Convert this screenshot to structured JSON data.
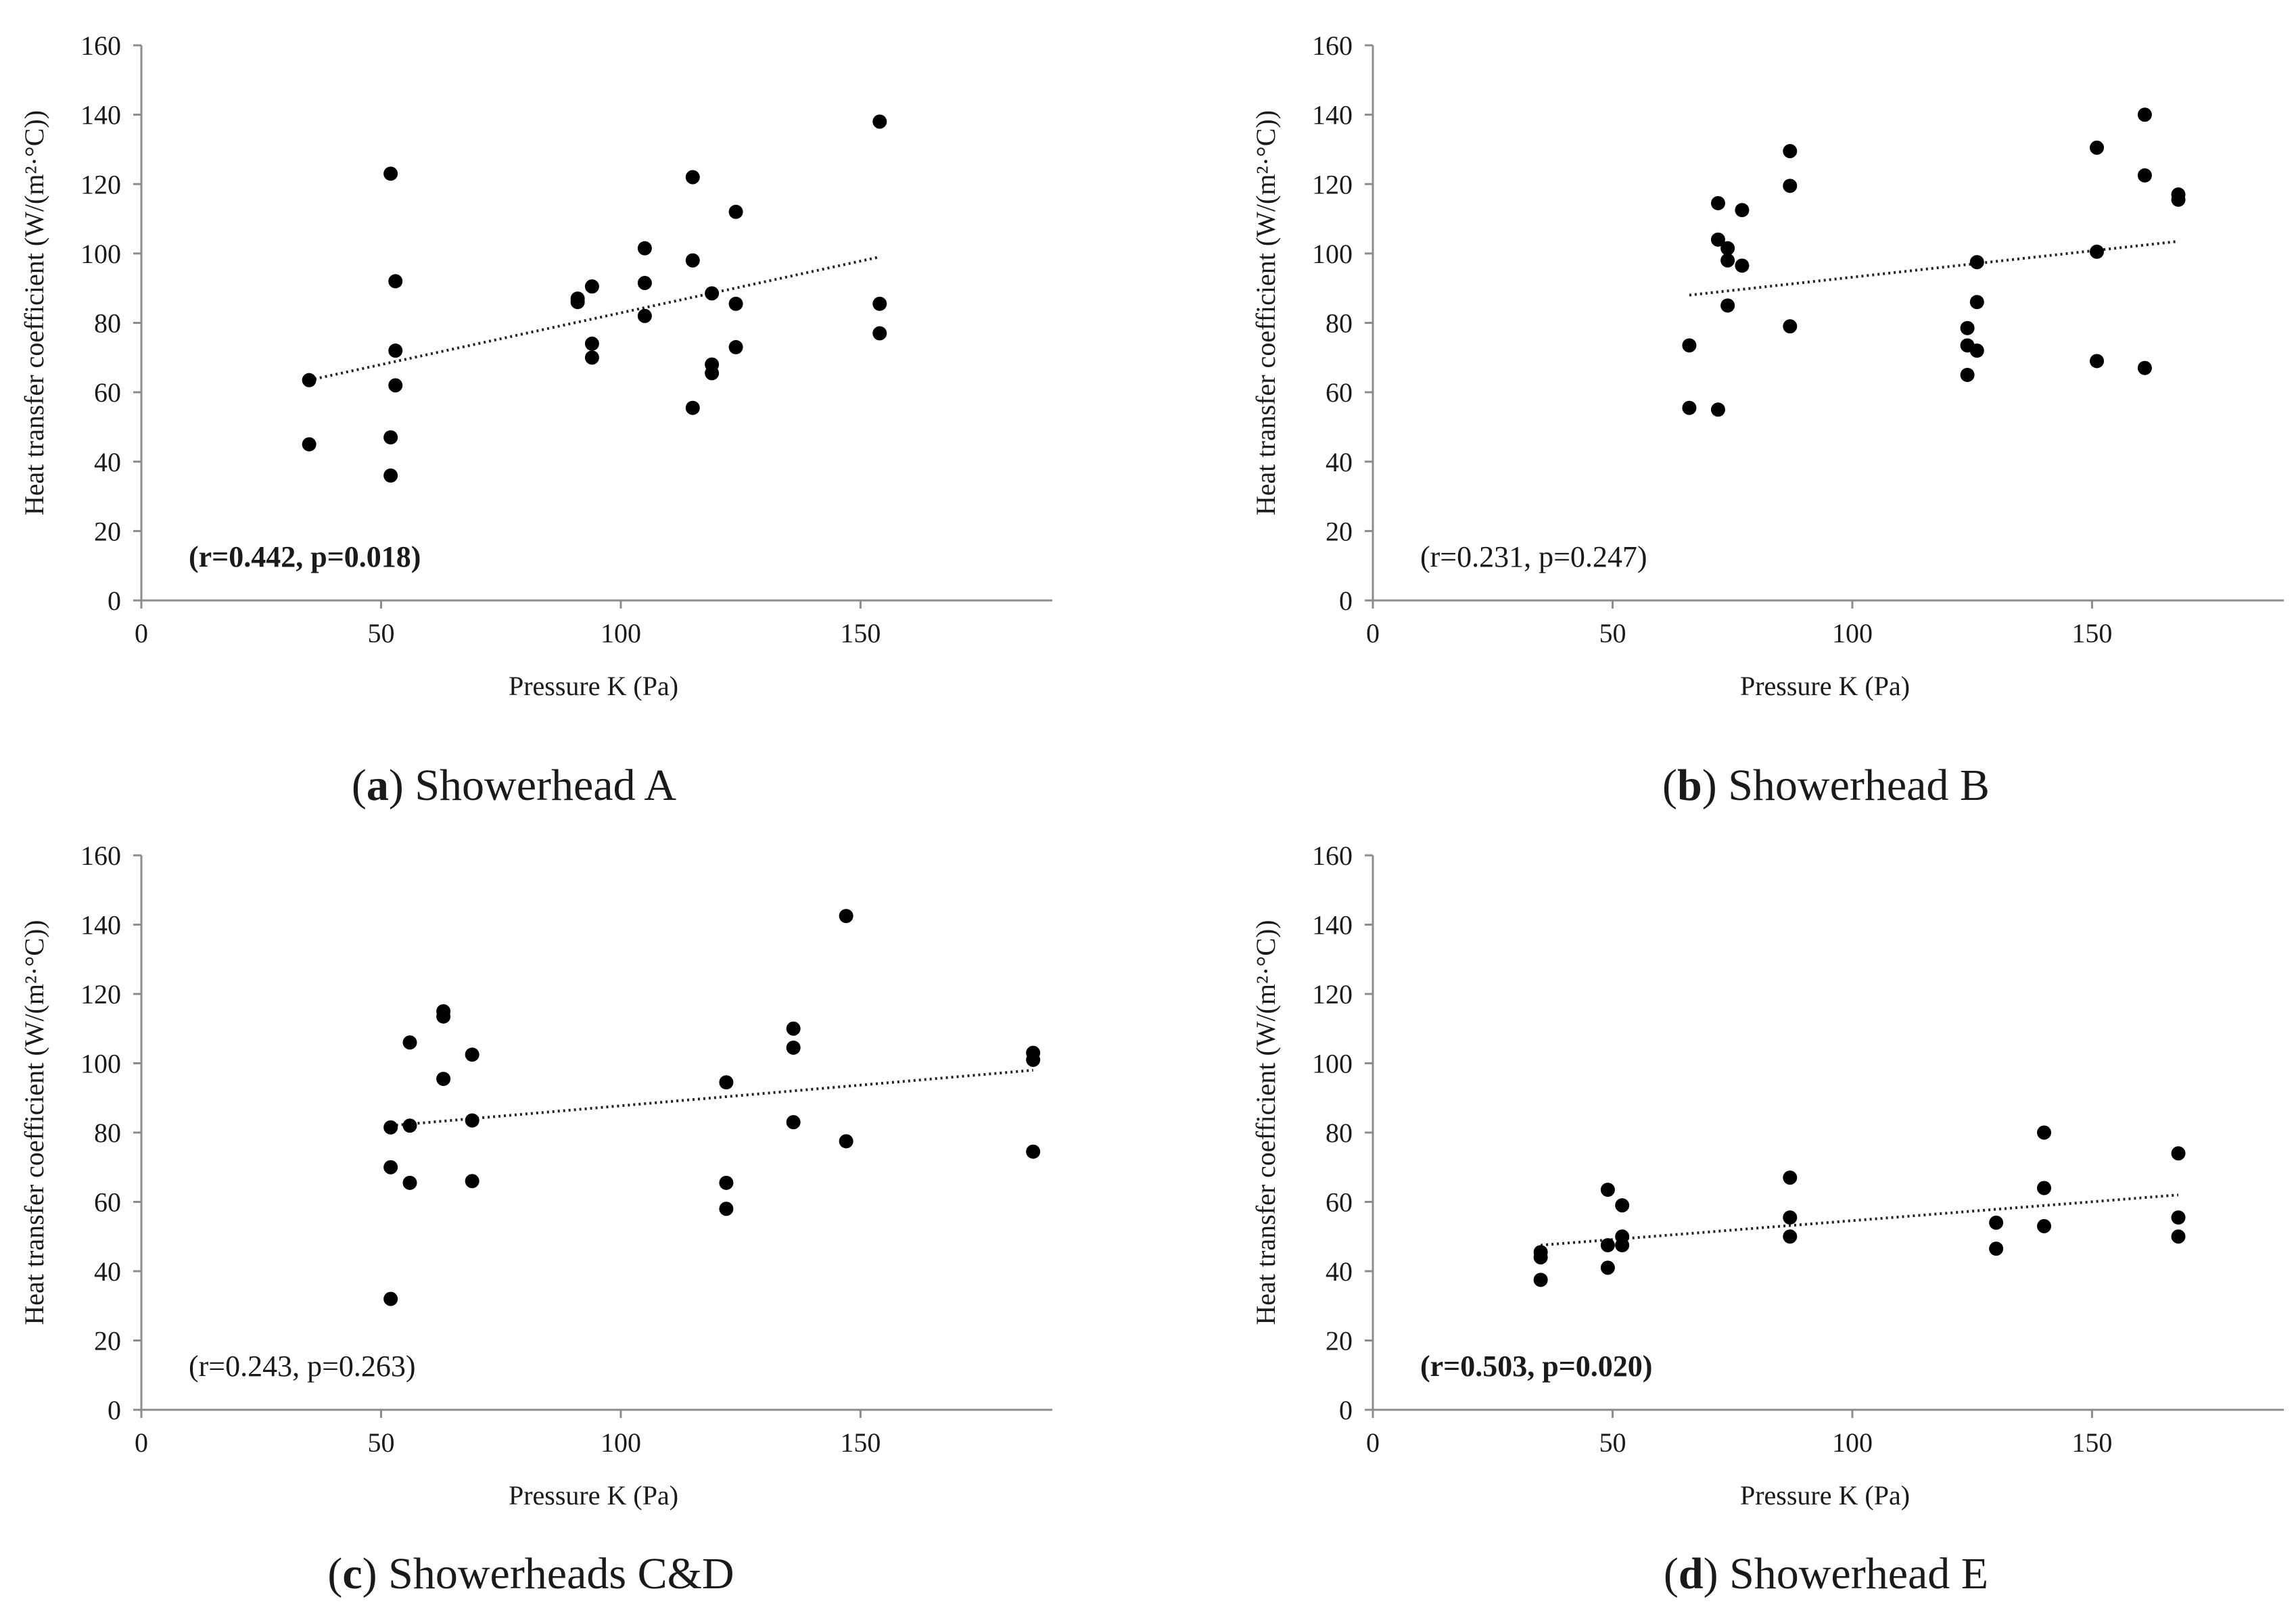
{
  "chart_data": [
    {
      "type": "scatter",
      "caption_label": "a",
      "caption_text": "Showerhead A",
      "xlabel": "Pressure K (Pa)",
      "ylabel": "Heat transfer coefficient (W/(m²·°C))",
      "xlim": [
        0,
        190
      ],
      "ylim": [
        0,
        160
      ],
      "xticks": [
        0,
        50,
        100,
        150
      ],
      "yticks": [
        0,
        20,
        40,
        60,
        80,
        100,
        120,
        140,
        160
      ],
      "annotation": "(r=0.442, p=0.018)",
      "annotation_bold": true,
      "trend": {
        "x": [
          35,
          154
        ],
        "y": [
          63.5,
          99
        ]
      },
      "points": [
        {
          "x": 35,
          "y": 63.5
        },
        {
          "x": 35,
          "y": 45
        },
        {
          "x": 52,
          "y": 123
        },
        {
          "x": 53,
          "y": 92
        },
        {
          "x": 53,
          "y": 72
        },
        {
          "x": 53,
          "y": 62
        },
        {
          "x": 52,
          "y": 47
        },
        {
          "x": 52,
          "y": 36
        },
        {
          "x": 91,
          "y": 87
        },
        {
          "x": 91,
          "y": 86
        },
        {
          "x": 94,
          "y": 90.5
        },
        {
          "x": 94,
          "y": 74
        },
        {
          "x": 94,
          "y": 70
        },
        {
          "x": 105,
          "y": 101.5
        },
        {
          "x": 105,
          "y": 91.5
        },
        {
          "x": 105,
          "y": 82
        },
        {
          "x": 115,
          "y": 122
        },
        {
          "x": 115,
          "y": 98
        },
        {
          "x": 115,
          "y": 55.5
        },
        {
          "x": 119,
          "y": 88.5
        },
        {
          "x": 119,
          "y": 68
        },
        {
          "x": 119,
          "y": 65.5
        },
        {
          "x": 124,
          "y": 112
        },
        {
          "x": 124,
          "y": 85.5
        },
        {
          "x": 124,
          "y": 73
        },
        {
          "x": 154,
          "y": 138
        },
        {
          "x": 154,
          "y": 85.5
        },
        {
          "x": 154,
          "y": 77
        }
      ]
    },
    {
      "type": "scatter",
      "caption_label": "b",
      "caption_text": "Showerhead B",
      "xlabel": "Pressure K (Pa)",
      "ylabel": "Heat transfer coefficient (W/(m²·°C))",
      "xlim": [
        0,
        190
      ],
      "ylim": [
        0,
        160
      ],
      "xticks": [
        0,
        50,
        100,
        150
      ],
      "yticks": [
        0,
        20,
        40,
        60,
        80,
        100,
        120,
        140,
        160
      ],
      "annotation": "(r=0.231, p=0.247)",
      "annotation_bold": false,
      "trend": {
        "x": [
          66,
          168
        ],
        "y": [
          88,
          103.5
        ]
      },
      "points": [
        {
          "x": 66,
          "y": 73.5
        },
        {
          "x": 66,
          "y": 55.5
        },
        {
          "x": 72,
          "y": 114.5
        },
        {
          "x": 72,
          "y": 104
        },
        {
          "x": 72,
          "y": 55
        },
        {
          "x": 74,
          "y": 101.5
        },
        {
          "x": 74,
          "y": 98
        },
        {
          "x": 74,
          "y": 85
        },
        {
          "x": 77,
          "y": 112.5
        },
        {
          "x": 77,
          "y": 96.5
        },
        {
          "x": 87,
          "y": 129.5
        },
        {
          "x": 87,
          "y": 119.5
        },
        {
          "x": 87,
          "y": 79
        },
        {
          "x": 124,
          "y": 78.5
        },
        {
          "x": 124,
          "y": 73.5
        },
        {
          "x": 124,
          "y": 65
        },
        {
          "x": 126,
          "y": 97.5
        },
        {
          "x": 126,
          "y": 86
        },
        {
          "x": 126,
          "y": 72
        },
        {
          "x": 151,
          "y": 130.5
        },
        {
          "x": 151,
          "y": 100.5
        },
        {
          "x": 151,
          "y": 69
        },
        {
          "x": 161,
          "y": 140
        },
        {
          "x": 161,
          "y": 122.5
        },
        {
          "x": 161,
          "y": 67
        },
        {
          "x": 168,
          "y": 117
        },
        {
          "x": 168,
          "y": 115.5
        }
      ]
    },
    {
      "type": "scatter",
      "caption_label": "c",
      "caption_text": "Showerheads C&D",
      "xlabel": "Pressure K (Pa)",
      "ylabel": "Heat transfer coefficient (W/(m²·°C))",
      "xlim": [
        0,
        190
      ],
      "ylim": [
        0,
        160
      ],
      "xticks": [
        0,
        50,
        100,
        150
      ],
      "yticks": [
        0,
        20,
        40,
        60,
        80,
        100,
        120,
        140,
        160
      ],
      "annotation": "(r=0.243, p=0.263)",
      "annotation_bold": false,
      "trend": {
        "x": [
          52,
          186
        ],
        "y": [
          82,
          98
        ]
      },
      "points": [
        {
          "x": 52,
          "y": 81.5
        },
        {
          "x": 52,
          "y": 70
        },
        {
          "x": 52,
          "y": 32
        },
        {
          "x": 56,
          "y": 106
        },
        {
          "x": 56,
          "y": 82
        },
        {
          "x": 56,
          "y": 65.5
        },
        {
          "x": 63,
          "y": 115
        },
        {
          "x": 63,
          "y": 113.5
        },
        {
          "x": 63,
          "y": 95.5
        },
        {
          "x": 69,
          "y": 102.5
        },
        {
          "x": 69,
          "y": 83.5
        },
        {
          "x": 69,
          "y": 66
        },
        {
          "x": 122,
          "y": 94.5
        },
        {
          "x": 122,
          "y": 65.5
        },
        {
          "x": 122,
          "y": 58
        },
        {
          "x": 136,
          "y": 110
        },
        {
          "x": 136,
          "y": 104.5
        },
        {
          "x": 136,
          "y": 83
        },
        {
          "x": 147,
          "y": 142.5
        },
        {
          "x": 147,
          "y": 77.5
        },
        {
          "x": 186,
          "y": 103
        },
        {
          "x": 186,
          "y": 101
        },
        {
          "x": 186,
          "y": 74.5
        }
      ]
    },
    {
      "type": "scatter",
      "caption_label": "d",
      "caption_text": "Showerhead E",
      "xlabel": "Pressure K (Pa)",
      "ylabel": "Heat transfer coefficient (W/(m²·°C))",
      "xlim": [
        0,
        190
      ],
      "ylim": [
        0,
        160
      ],
      "xticks": [
        0,
        50,
        100,
        150
      ],
      "yticks": [
        0,
        20,
        40,
        60,
        80,
        100,
        120,
        140,
        160
      ],
      "annotation": "(r=0.503, p=0.020)",
      "annotation_bold": true,
      "trend": {
        "x": [
          35,
          168
        ],
        "y": [
          47.5,
          62
        ]
      },
      "points": [
        {
          "x": 35,
          "y": 45.5
        },
        {
          "x": 35,
          "y": 44
        },
        {
          "x": 35,
          "y": 37.5
        },
        {
          "x": 49,
          "y": 63.5
        },
        {
          "x": 49,
          "y": 47.5
        },
        {
          "x": 49,
          "y": 41
        },
        {
          "x": 52,
          "y": 59
        },
        {
          "x": 52,
          "y": 50
        },
        {
          "x": 52,
          "y": 47.5
        },
        {
          "x": 87,
          "y": 67
        },
        {
          "x": 87,
          "y": 55.5
        },
        {
          "x": 87,
          "y": 50
        },
        {
          "x": 130,
          "y": 54
        },
        {
          "x": 130,
          "y": 46.5
        },
        {
          "x": 140,
          "y": 80
        },
        {
          "x": 140,
          "y": 64
        },
        {
          "x": 140,
          "y": 53
        },
        {
          "x": 168,
          "y": 74
        },
        {
          "x": 168,
          "y": 55.5
        },
        {
          "x": 168,
          "y": 50
        }
      ]
    }
  ]
}
